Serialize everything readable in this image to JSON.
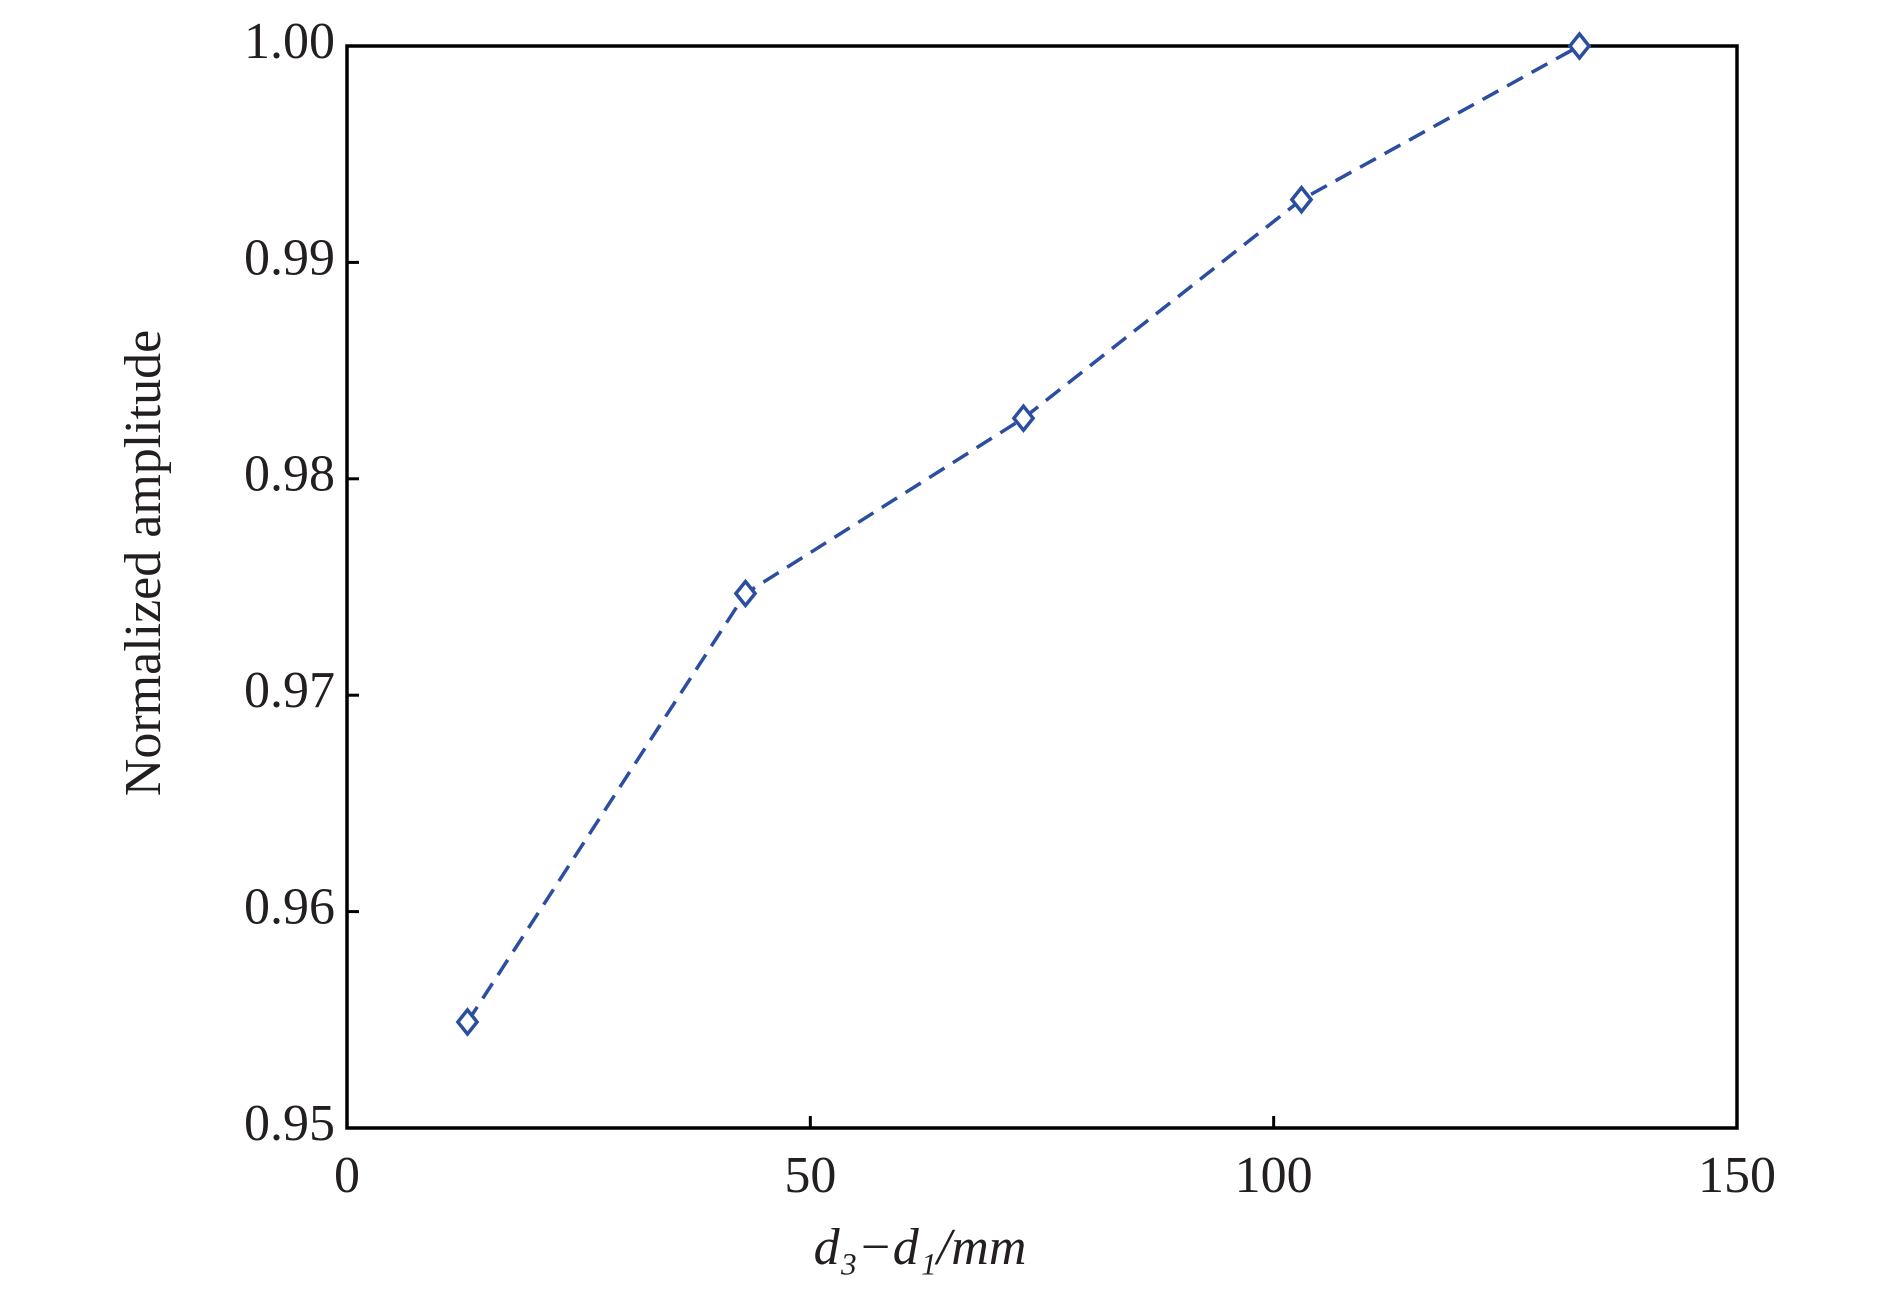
{
  "chart_data": {
    "type": "line",
    "x_label": "d₃−d₁/mm",
    "y_label": "Normalized amplitude",
    "x": [
      13,
      43,
      73,
      103,
      133
    ],
    "series": [
      {
        "color": "#2b4ea0",
        "values": [
          0.9549,
          0.9747,
          0.9828,
          0.9929,
          1.0
        ]
      }
    ],
    "xlim": [
      0,
      150
    ],
    "xticks": [
      0,
      50,
      100,
      150
    ],
    "ylim": [
      0.95,
      1.0
    ],
    "yticks": [
      0.95,
      0.96,
      0.97,
      0.98,
      0.99,
      {
        "value": 1,
        "label": "1.00"
      }
    ],
    "marker": "diamond",
    "line_style": "dashed",
    "grid": false
  }
}
